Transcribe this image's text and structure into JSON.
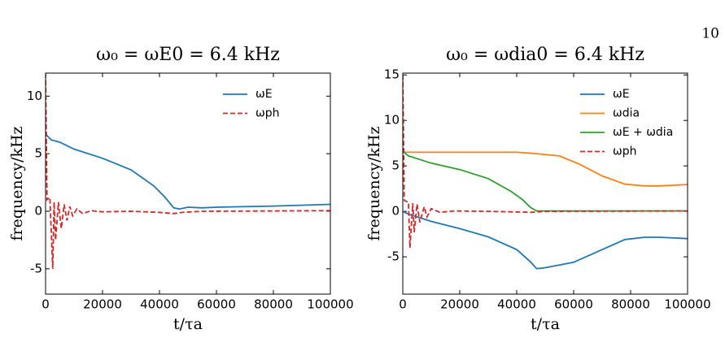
{
  "page_number": "10",
  "chart_data": [
    {
      "type": "line",
      "title": "ω₀ = ωE0 = 6.4 kHz",
      "x_label": "t/τa",
      "y_label": "frequency/kHz",
      "xlim": [
        0,
        100000
      ],
      "ylim": [
        -7.2,
        12
      ],
      "xticks": [
        0,
        20000,
        40000,
        60000,
        80000,
        100000
      ],
      "yticks": [
        -5,
        0,
        5,
        10
      ],
      "legend": "upper right",
      "series": [
        {
          "name": "ωE",
          "color": "#1f77b4",
          "linestyle": "solid",
          "x": [
            0,
            2000,
            5000,
            10000,
            20000,
            30000,
            38000,
            42000,
            45000,
            47000,
            50000,
            55000,
            60000,
            80000,
            100000
          ],
          "values": [
            6.7,
            6.2,
            6.0,
            5.4,
            4.6,
            3.6,
            2.2,
            1.2,
            0.3,
            0.2,
            0.35,
            0.3,
            0.35,
            0.45,
            0.6
          ]
        },
        {
          "name": "ωph",
          "color": "#d62728",
          "linestyle": "dashed",
          "x": [
            0,
            500,
            1500,
            2500,
            3000,
            3500,
            4500,
            5500,
            6500,
            7500,
            8500,
            9500,
            11000,
            13000,
            16000,
            20000,
            30000,
            40000,
            45000,
            48000,
            55000,
            100000
          ],
          "values": [
            12,
            1.0,
            1.2,
            -5.0,
            0.8,
            -2.5,
            0.8,
            -1.5,
            0.6,
            -0.8,
            0.4,
            -0.4,
            0.2,
            -0.2,
            0.05,
            -0.05,
            0,
            -0.1,
            -0.2,
            -0.1,
            0,
            0.05
          ]
        }
      ]
    },
    {
      "type": "line",
      "title": "ω₀ = ωdia0 = 6.4 kHz",
      "x_label": "t/τa",
      "y_label": "frequency/kHz",
      "xlim": [
        0,
        100000
      ],
      "ylim": [
        -9.1,
        15.2
      ],
      "xticks": [
        0,
        20000,
        40000,
        60000,
        80000,
        100000
      ],
      "yticks": [
        -5,
        0,
        5,
        10,
        15
      ],
      "legend": "upper right",
      "series": [
        {
          "name": "ωE",
          "color": "#1f77b4",
          "linestyle": "solid",
          "x": [
            0,
            2000,
            5000,
            10000,
            20000,
            30000,
            40000,
            45000,
            47000,
            50000,
            60000,
            70000,
            78000,
            85000,
            90000,
            100000
          ],
          "values": [
            0,
            -0.3,
            -0.6,
            -1.1,
            -1.9,
            -2.8,
            -4.2,
            -5.6,
            -6.3,
            -6.2,
            -5.6,
            -4.2,
            -3.1,
            -2.85,
            -2.85,
            -3.0
          ]
        },
        {
          "name": "ωdia",
          "color": "#ff7f0e",
          "linestyle": "solid",
          "x": [
            0,
            20000,
            40000,
            45000,
            55000,
            62000,
            70000,
            78000,
            85000,
            90000,
            100000
          ],
          "values": [
            6.5,
            6.5,
            6.5,
            6.4,
            6.1,
            5.2,
            3.9,
            3.0,
            2.8,
            2.8,
            2.95
          ]
        },
        {
          "name": "ωE + ωdia",
          "color": "#2ca02c",
          "linestyle": "solid",
          "x": [
            0,
            2000,
            5000,
            10000,
            20000,
            30000,
            38000,
            42000,
            45000,
            47000,
            100000
          ],
          "values": [
            6.6,
            6.1,
            5.8,
            5.3,
            4.6,
            3.6,
            2.2,
            1.3,
            0.4,
            0.05,
            0.05
          ]
        },
        {
          "name": "ωph",
          "color": "#d62728",
          "linestyle": "dashed",
          "x": [
            0,
            500,
            2000,
            2500,
            3500,
            4000,
            5000,
            6000,
            7500,
            8500,
            10000,
            13000,
            18000,
            30000,
            45000,
            50000,
            100000
          ],
          "values": [
            15,
            1.2,
            1.0,
            -4.0,
            0.9,
            -2.3,
            0.8,
            -1.2,
            0.5,
            -0.6,
            0.3,
            -0.1,
            0.05,
            0,
            -0.1,
            0,
            0.05
          ]
        }
      ]
    }
  ]
}
